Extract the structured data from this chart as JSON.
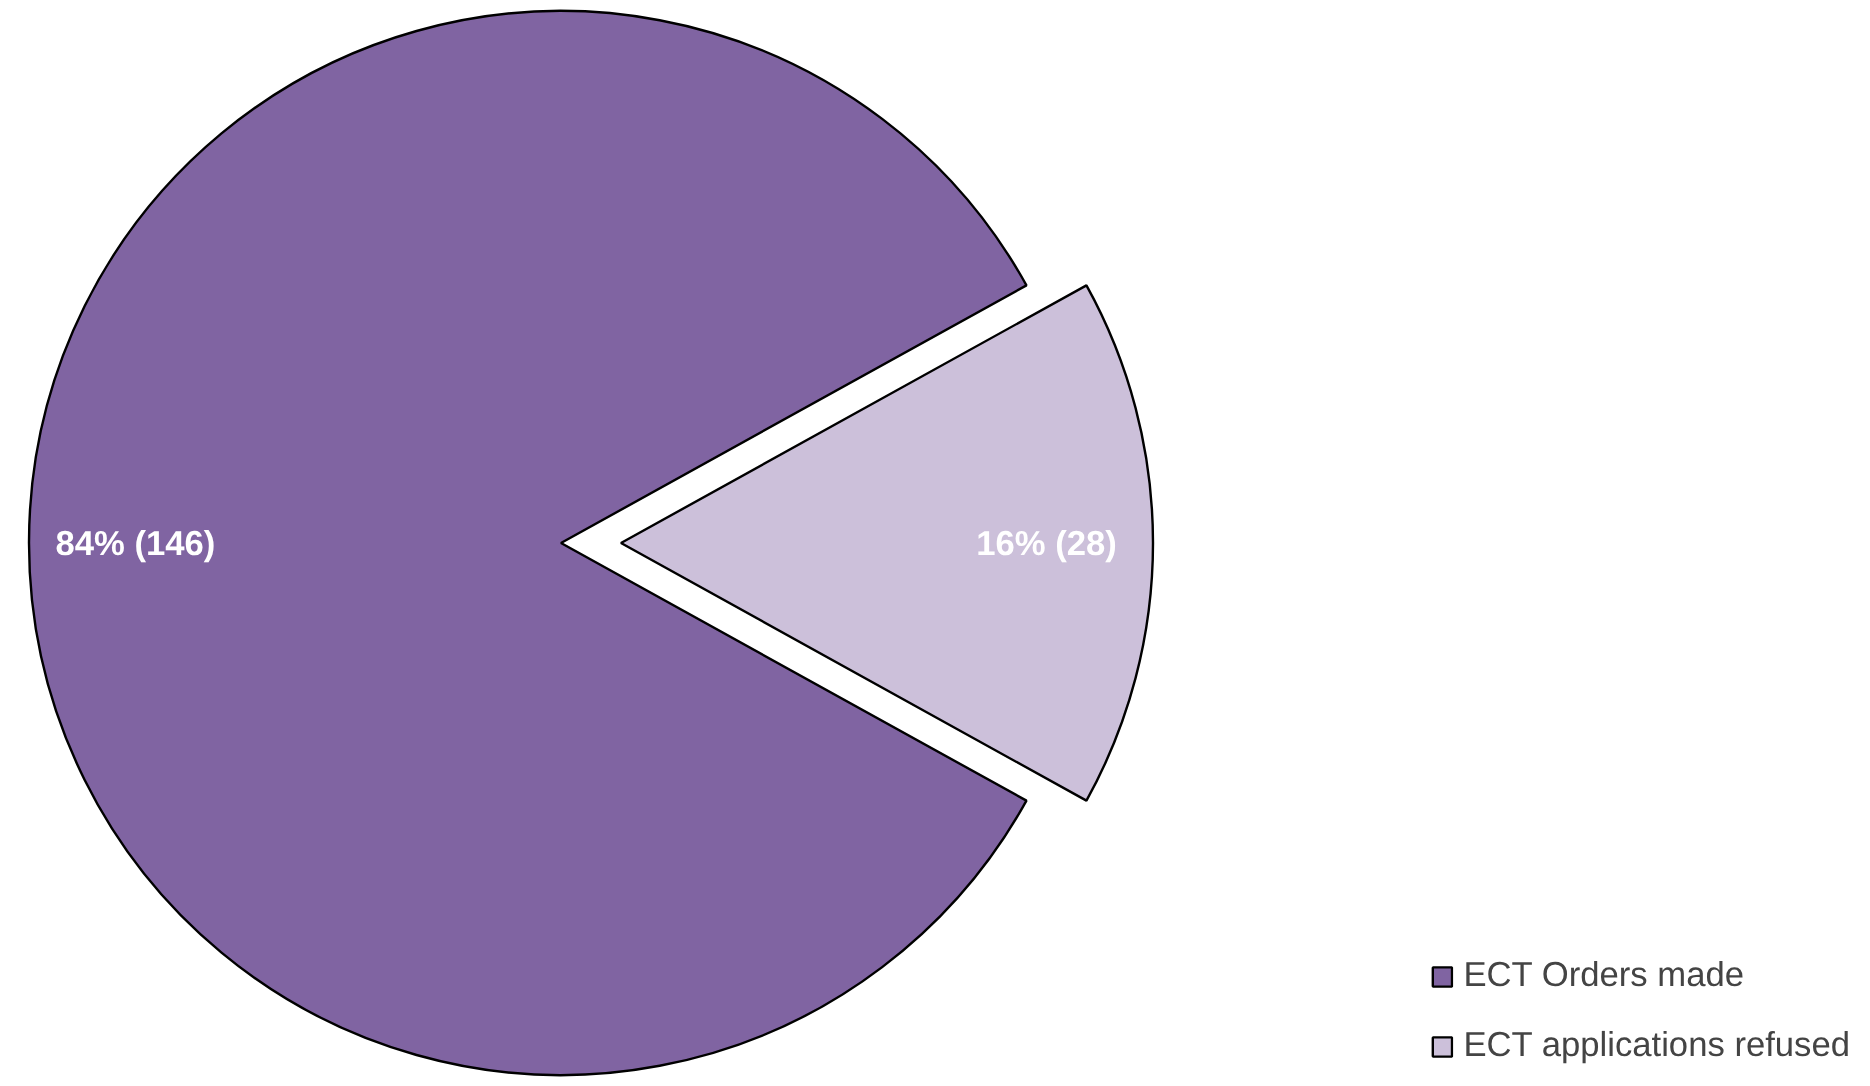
{
  "chart_data": {
    "type": "pie",
    "categories": [
      "ECT Orders made",
      "ECT applications refused"
    ],
    "values": [
      146,
      28
    ],
    "colors": [
      "#8064a2",
      "#ccc0da"
    ],
    "value_labels": [
      "84% (146)",
      "16% (28)"
    ],
    "legend": "bottom right"
  }
}
